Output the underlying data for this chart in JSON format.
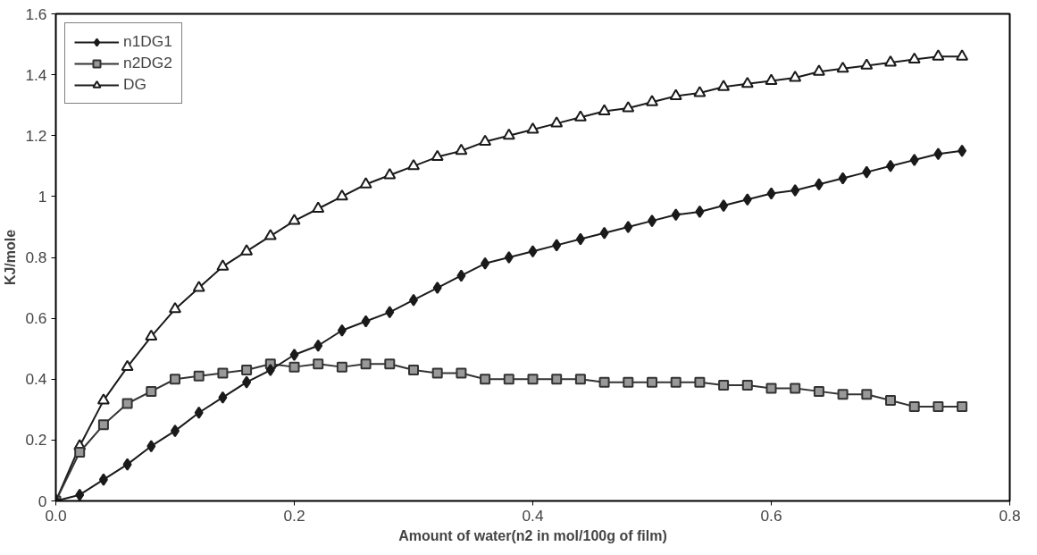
{
  "chart_data": {
    "type": "line",
    "xlabel": "Amount of water(n2 in mol/100g of film)",
    "ylabel": "KJ/mole",
    "x": [
      0,
      0.02,
      0.04,
      0.06,
      0.08,
      0.1,
      0.12,
      0.14,
      0.16,
      0.18,
      0.2,
      0.22,
      0.24,
      0.26,
      0.28,
      0.3,
      0.32,
      0.34,
      0.36,
      0.38,
      0.4,
      0.42,
      0.44,
      0.46,
      0.48,
      0.5,
      0.52,
      0.54,
      0.56,
      0.58,
      0.6,
      0.62,
      0.64,
      0.66,
      0.68,
      0.7,
      0.72,
      0.74,
      0.76
    ],
    "series": [
      {
        "name": "n1DG1",
        "color": "#1a1a1a",
        "marker": "diamond",
        "values": [
          0,
          0.02,
          0.07,
          0.12,
          0.18,
          0.23,
          0.29,
          0.34,
          0.39,
          0.43,
          0.48,
          0.51,
          0.56,
          0.59,
          0.62,
          0.66,
          0.7,
          0.74,
          0.78,
          0.8,
          0.82,
          0.84,
          0.86,
          0.88,
          0.9,
          0.92,
          0.94,
          0.95,
          0.97,
          0.99,
          1.01,
          1.02,
          1.04,
          1.06,
          1.08,
          1.1,
          1.12,
          1.14,
          1.15
        ]
      },
      {
        "name": "n2DG2",
        "color": "#333333",
        "marker": "square",
        "values": [
          0,
          0.16,
          0.25,
          0.32,
          0.36,
          0.4,
          0.41,
          0.42,
          0.43,
          0.45,
          0.44,
          0.45,
          0.44,
          0.45,
          0.45,
          0.43,
          0.42,
          0.42,
          0.4,
          0.4,
          0.4,
          0.4,
          0.4,
          0.39,
          0.39,
          0.39,
          0.39,
          0.39,
          0.38,
          0.38,
          0.37,
          0.37,
          0.36,
          0.35,
          0.35,
          0.33,
          0.31,
          0.31,
          0.31
        ]
      },
      {
        "name": "DG",
        "color": "#1a1a1a",
        "marker": "triangle",
        "values": [
          0,
          0.18,
          0.33,
          0.44,
          0.54,
          0.63,
          0.7,
          0.77,
          0.82,
          0.87,
          0.92,
          0.96,
          1.0,
          1.04,
          1.07,
          1.1,
          1.13,
          1.15,
          1.18,
          1.2,
          1.22,
          1.24,
          1.26,
          1.28,
          1.29,
          1.31,
          1.33,
          1.34,
          1.36,
          1.37,
          1.38,
          1.39,
          1.41,
          1.42,
          1.43,
          1.44,
          1.45,
          1.46,
          1.46
        ]
      }
    ],
    "xlim": [
      0,
      0.8
    ],
    "xticks": [
      {
        "value": 0,
        "label": "0.0"
      },
      0.2,
      0.4,
      0.6,
      0.8
    ],
    "ylim": [
      0,
      1.6
    ],
    "yticks": [
      0,
      0.2,
      0.4,
      0.6,
      0.8,
      1,
      1.2,
      1.4,
      1.6
    ],
    "grid": false,
    "legend": "top left",
    "line_style": "solid"
  }
}
